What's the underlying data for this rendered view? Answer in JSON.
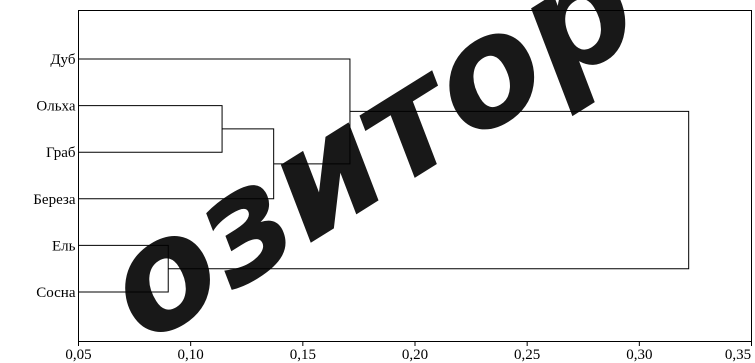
{
  "chart_data": {
    "type": "dendrogram",
    "x_ticks": [
      "0,05",
      "0,10",
      "0,15",
      "0,20",
      "0,25",
      "0,30",
      "0,35"
    ],
    "x_tick_values": [
      0.05,
      0.1,
      0.15,
      0.2,
      0.25,
      0.3,
      0.35
    ],
    "xlim": [
      0.05,
      0.35
    ],
    "leaves": [
      "Дуб",
      "Ольха",
      "Граб",
      "Береза",
      "Ель",
      "Сосна"
    ],
    "merges": [
      {
        "a": "Ольха",
        "b": "Граб",
        "distance": 0.114
      },
      {
        "a": "Ель",
        "b": "Сосна",
        "distance": 0.09
      },
      {
        "a": "Ольха+Граб",
        "b": "Береза",
        "distance": 0.137
      },
      {
        "a": "Ольха+Граб+Береза",
        "b": "Дуб",
        "distance": 0.171
      },
      {
        "a": "Дуб+Ольха+Граб+Береза",
        "b": "Ель+Сосна",
        "distance": 0.322
      }
    ],
    "colors": {
      "line": "#000000",
      "background": "#ffffff"
    }
  },
  "watermark": "озитор"
}
